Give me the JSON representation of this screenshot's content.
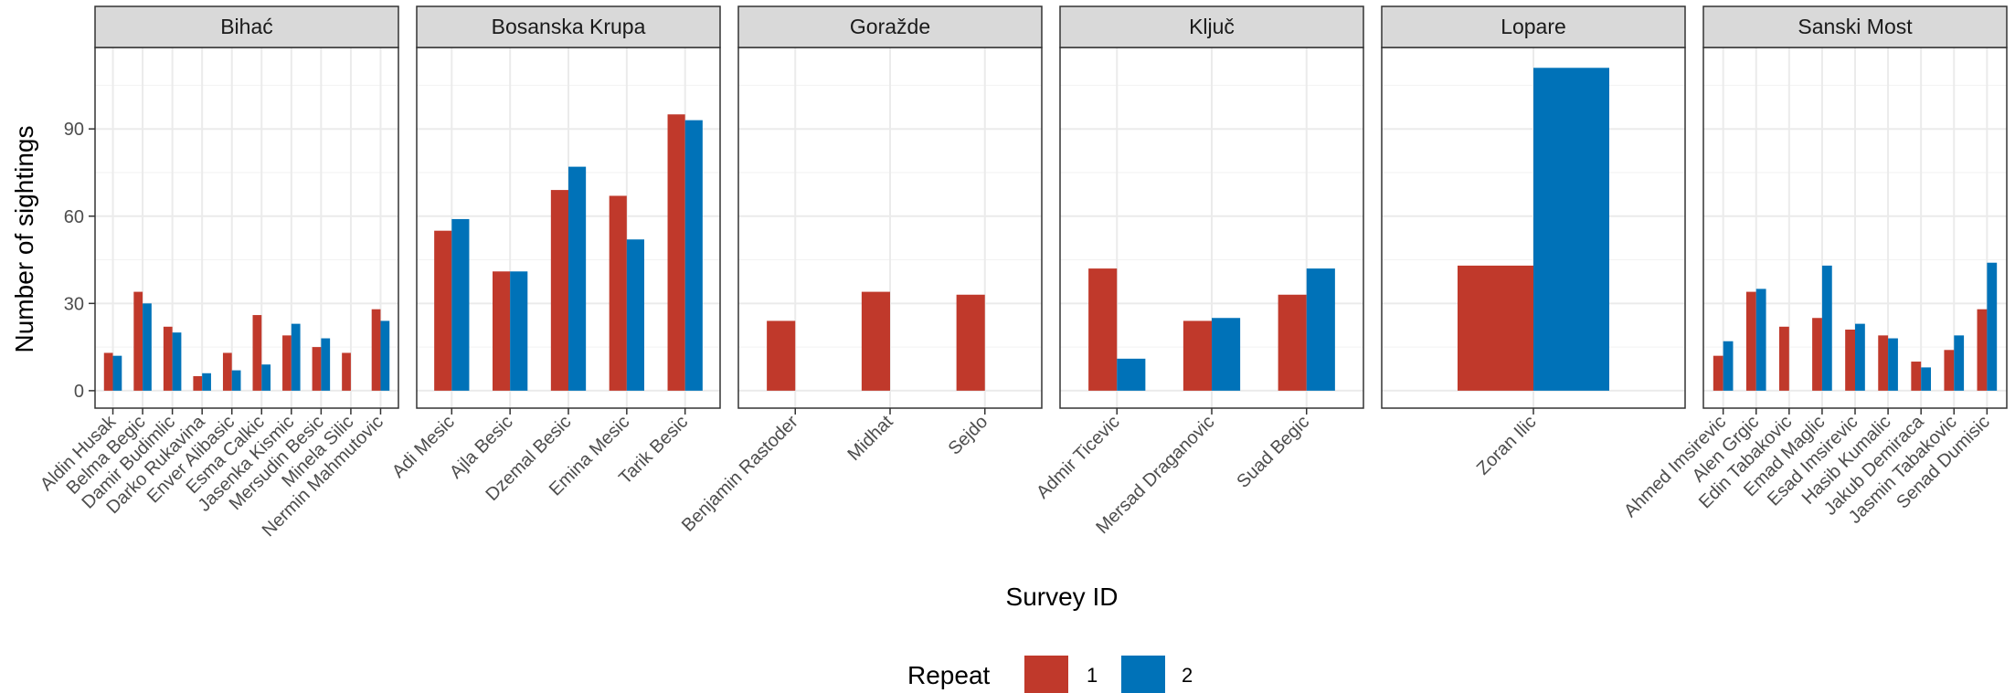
{
  "chart_data": {
    "type": "bar",
    "ylabel": "Number of sightings",
    "xlabel": "Survey ID",
    "ylim": [
      -6,
      118
    ],
    "yticks": [
      0,
      30,
      60,
      90
    ],
    "grid": true,
    "legend": {
      "title": "Repeat",
      "position": "bottom",
      "entries": [
        {
          "label": "1",
          "color": "#c0392b"
        },
        {
          "label": "2",
          "color": "#0072b8"
        }
      ]
    },
    "colors": {
      "1": "#c0392b",
      "2": "#0072b8"
    },
    "panels": [
      {
        "title": "Bihać",
        "categories": [
          "Aldin Husak",
          "Belma Begic",
          "Damir Budimlic",
          "Darko Rukavina",
          "Enver Alibasic",
          "Esma Calkic",
          "Jasenka Kismic",
          "Mersudin Besic",
          "Minela Silic",
          "Nermin Mahmutovic"
        ],
        "series": [
          {
            "name": "1",
            "values": [
              13,
              34,
              22,
              5,
              13,
              26,
              19,
              15,
              13,
              28
            ]
          },
          {
            "name": "2",
            "values": [
              12,
              30,
              20,
              6,
              7,
              9,
              23,
              18,
              null,
              24
            ]
          }
        ]
      },
      {
        "title": "Bosanska Krupa",
        "categories": [
          "Adi Mesic",
          "Ajla Besic",
          "Dzemal Besic",
          "Emina Mesic",
          "Tarik Besic"
        ],
        "series": [
          {
            "name": "1",
            "values": [
              55,
              41,
              69,
              67,
              95
            ]
          },
          {
            "name": "2",
            "values": [
              59,
              41,
              77,
              52,
              93
            ]
          }
        ]
      },
      {
        "title": "Goražde",
        "categories": [
          "Benjamin Rastoder",
          "Midhat",
          "Sejdo"
        ],
        "series": [
          {
            "name": "1",
            "values": [
              24,
              34,
              33
            ]
          },
          {
            "name": "2",
            "values": [
              null,
              null,
              null
            ]
          }
        ]
      },
      {
        "title": "Ključ",
        "categories": [
          "Admir Ticevic",
          "Mersad Draganovic",
          "Suad Begic"
        ],
        "series": [
          {
            "name": "1",
            "values": [
              42,
              24,
              33
            ]
          },
          {
            "name": "2",
            "values": [
              11,
              25,
              42
            ]
          }
        ]
      },
      {
        "title": "Lopare",
        "categories": [
          "Zoran Ilic"
        ],
        "series": [
          {
            "name": "1",
            "values": [
              43
            ]
          },
          {
            "name": "2",
            "values": [
              111
            ]
          }
        ]
      },
      {
        "title": "Sanski Most",
        "categories": [
          "Ahmed Imsirevic",
          "Alen Grgic",
          "Edin Tabakovic",
          "Emad Maglic",
          "Esad Imsirevic",
          "Hasib Kumalic",
          "Jakub Demiraca",
          "Jasmin Tabakovic",
          "Senad Dumisic"
        ],
        "series": [
          {
            "name": "1",
            "values": [
              12,
              34,
              22,
              25,
              21,
              19,
              10,
              14,
              28
            ]
          },
          {
            "name": "2",
            "values": [
              17,
              35,
              null,
              43,
              23,
              18,
              8,
              19,
              44
            ]
          }
        ]
      }
    ]
  }
}
